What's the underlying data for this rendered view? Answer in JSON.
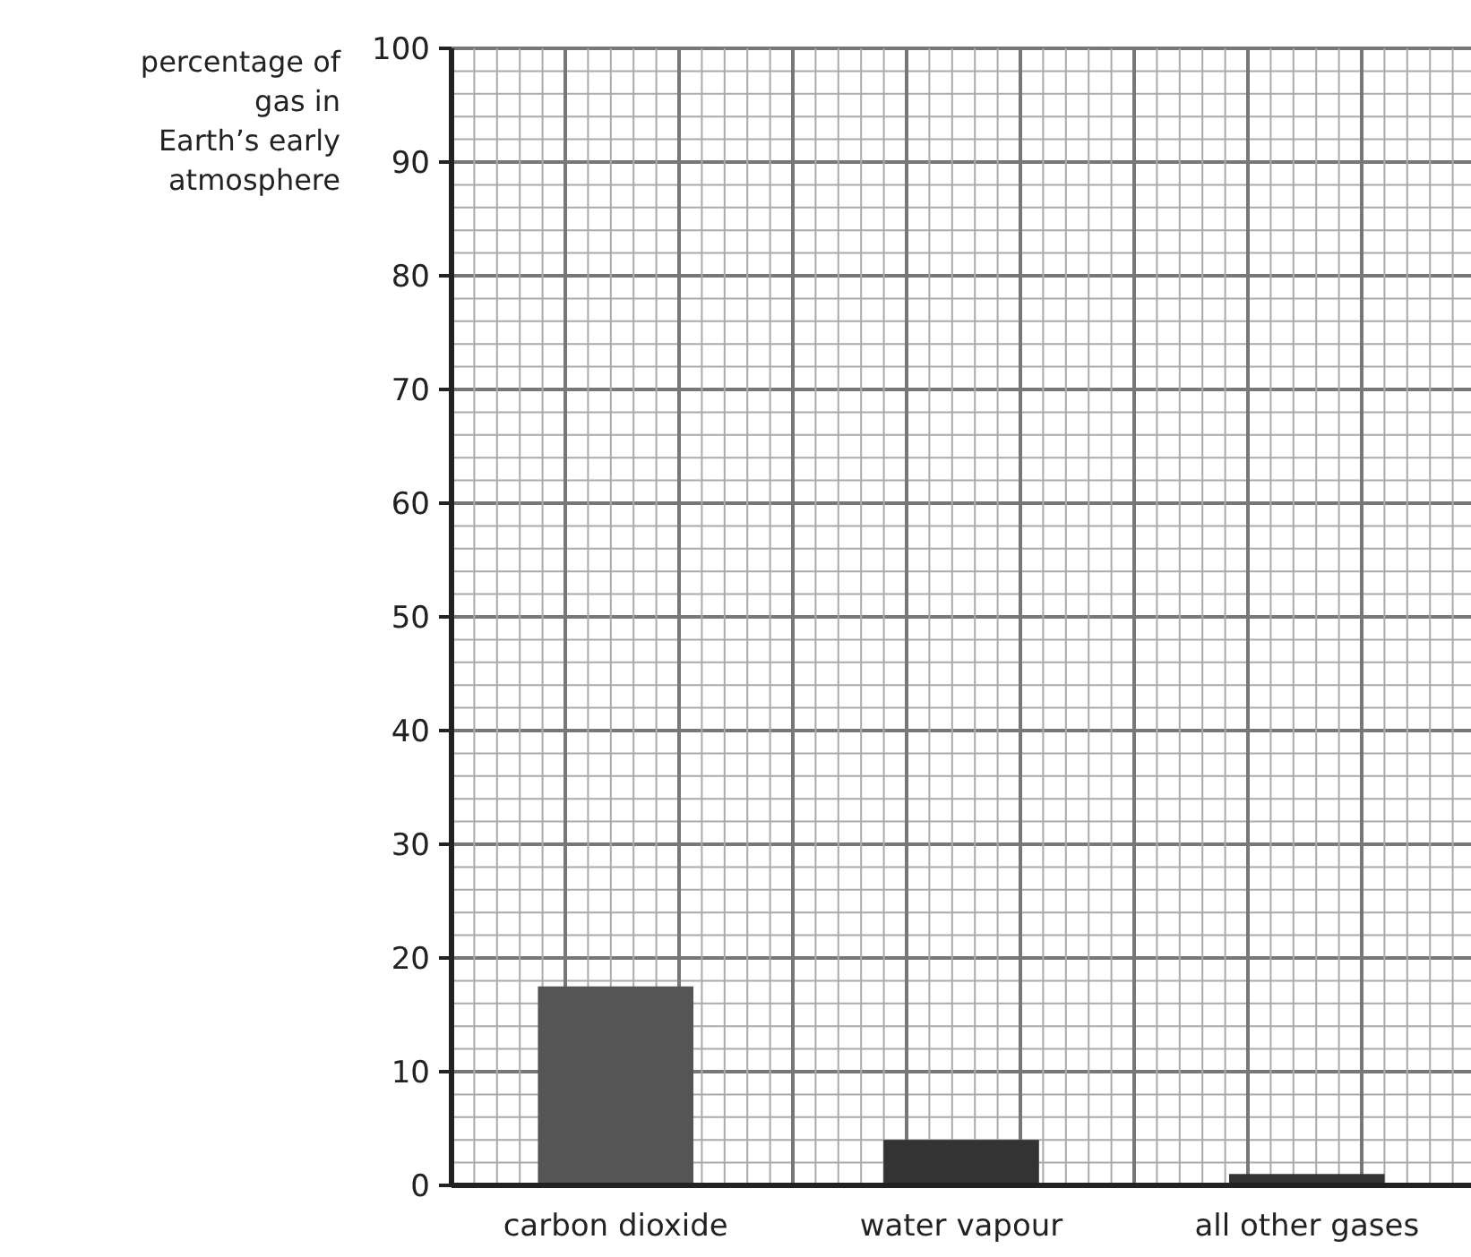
{
  "chart_data": {
    "type": "bar",
    "ylabel": "percentage of gas in Earth’s early atmosphere",
    "categories": [
      "carbon dioxide",
      "water vapour",
      "all other gases"
    ],
    "values": [
      17.5,
      4,
      1
    ],
    "colors": [
      "#555555",
      "#333333",
      "#333333"
    ],
    "ylim": [
      0,
      100
    ],
    "yticks": [
      0,
      10,
      20,
      30,
      40,
      50,
      60,
      70,
      80,
      90,
      100
    ],
    "grid": true
  }
}
